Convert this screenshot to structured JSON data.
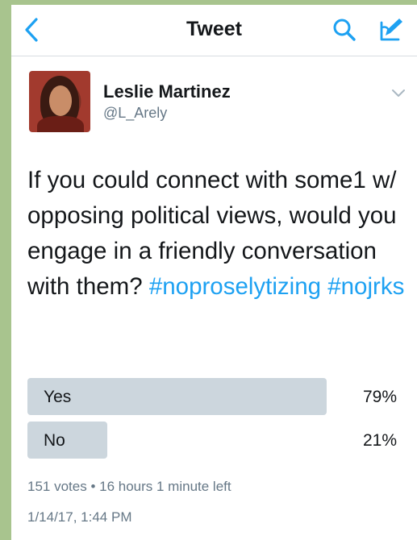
{
  "nav": {
    "title": "Tweet"
  },
  "tweet": {
    "author_name": "Leslie Martinez",
    "author_handle": "@L_Arely",
    "text_parts": [
      "If you could connect with some1 w/ opposing political views, would you engage in a friendly conversation with them? ",
      "#noproselytizing",
      " ",
      "#nojrks"
    ],
    "timestamp": "1/14/17, 1:44 PM"
  },
  "poll": {
    "options": [
      {
        "label": "Yes",
        "percent_text": "79%",
        "percent": 79
      },
      {
        "label": "No",
        "percent_text": "21%",
        "percent": 21
      }
    ],
    "meta": "151 votes • 16 hours 1 minute left"
  },
  "colors": {
    "accent": "#1da1f2",
    "poll_bar": "#ccd6dd",
    "secondary_text": "#657786"
  },
  "icons": [
    "back-chevron-icon",
    "search-icon",
    "compose-icon",
    "chevron-down-icon"
  ]
}
